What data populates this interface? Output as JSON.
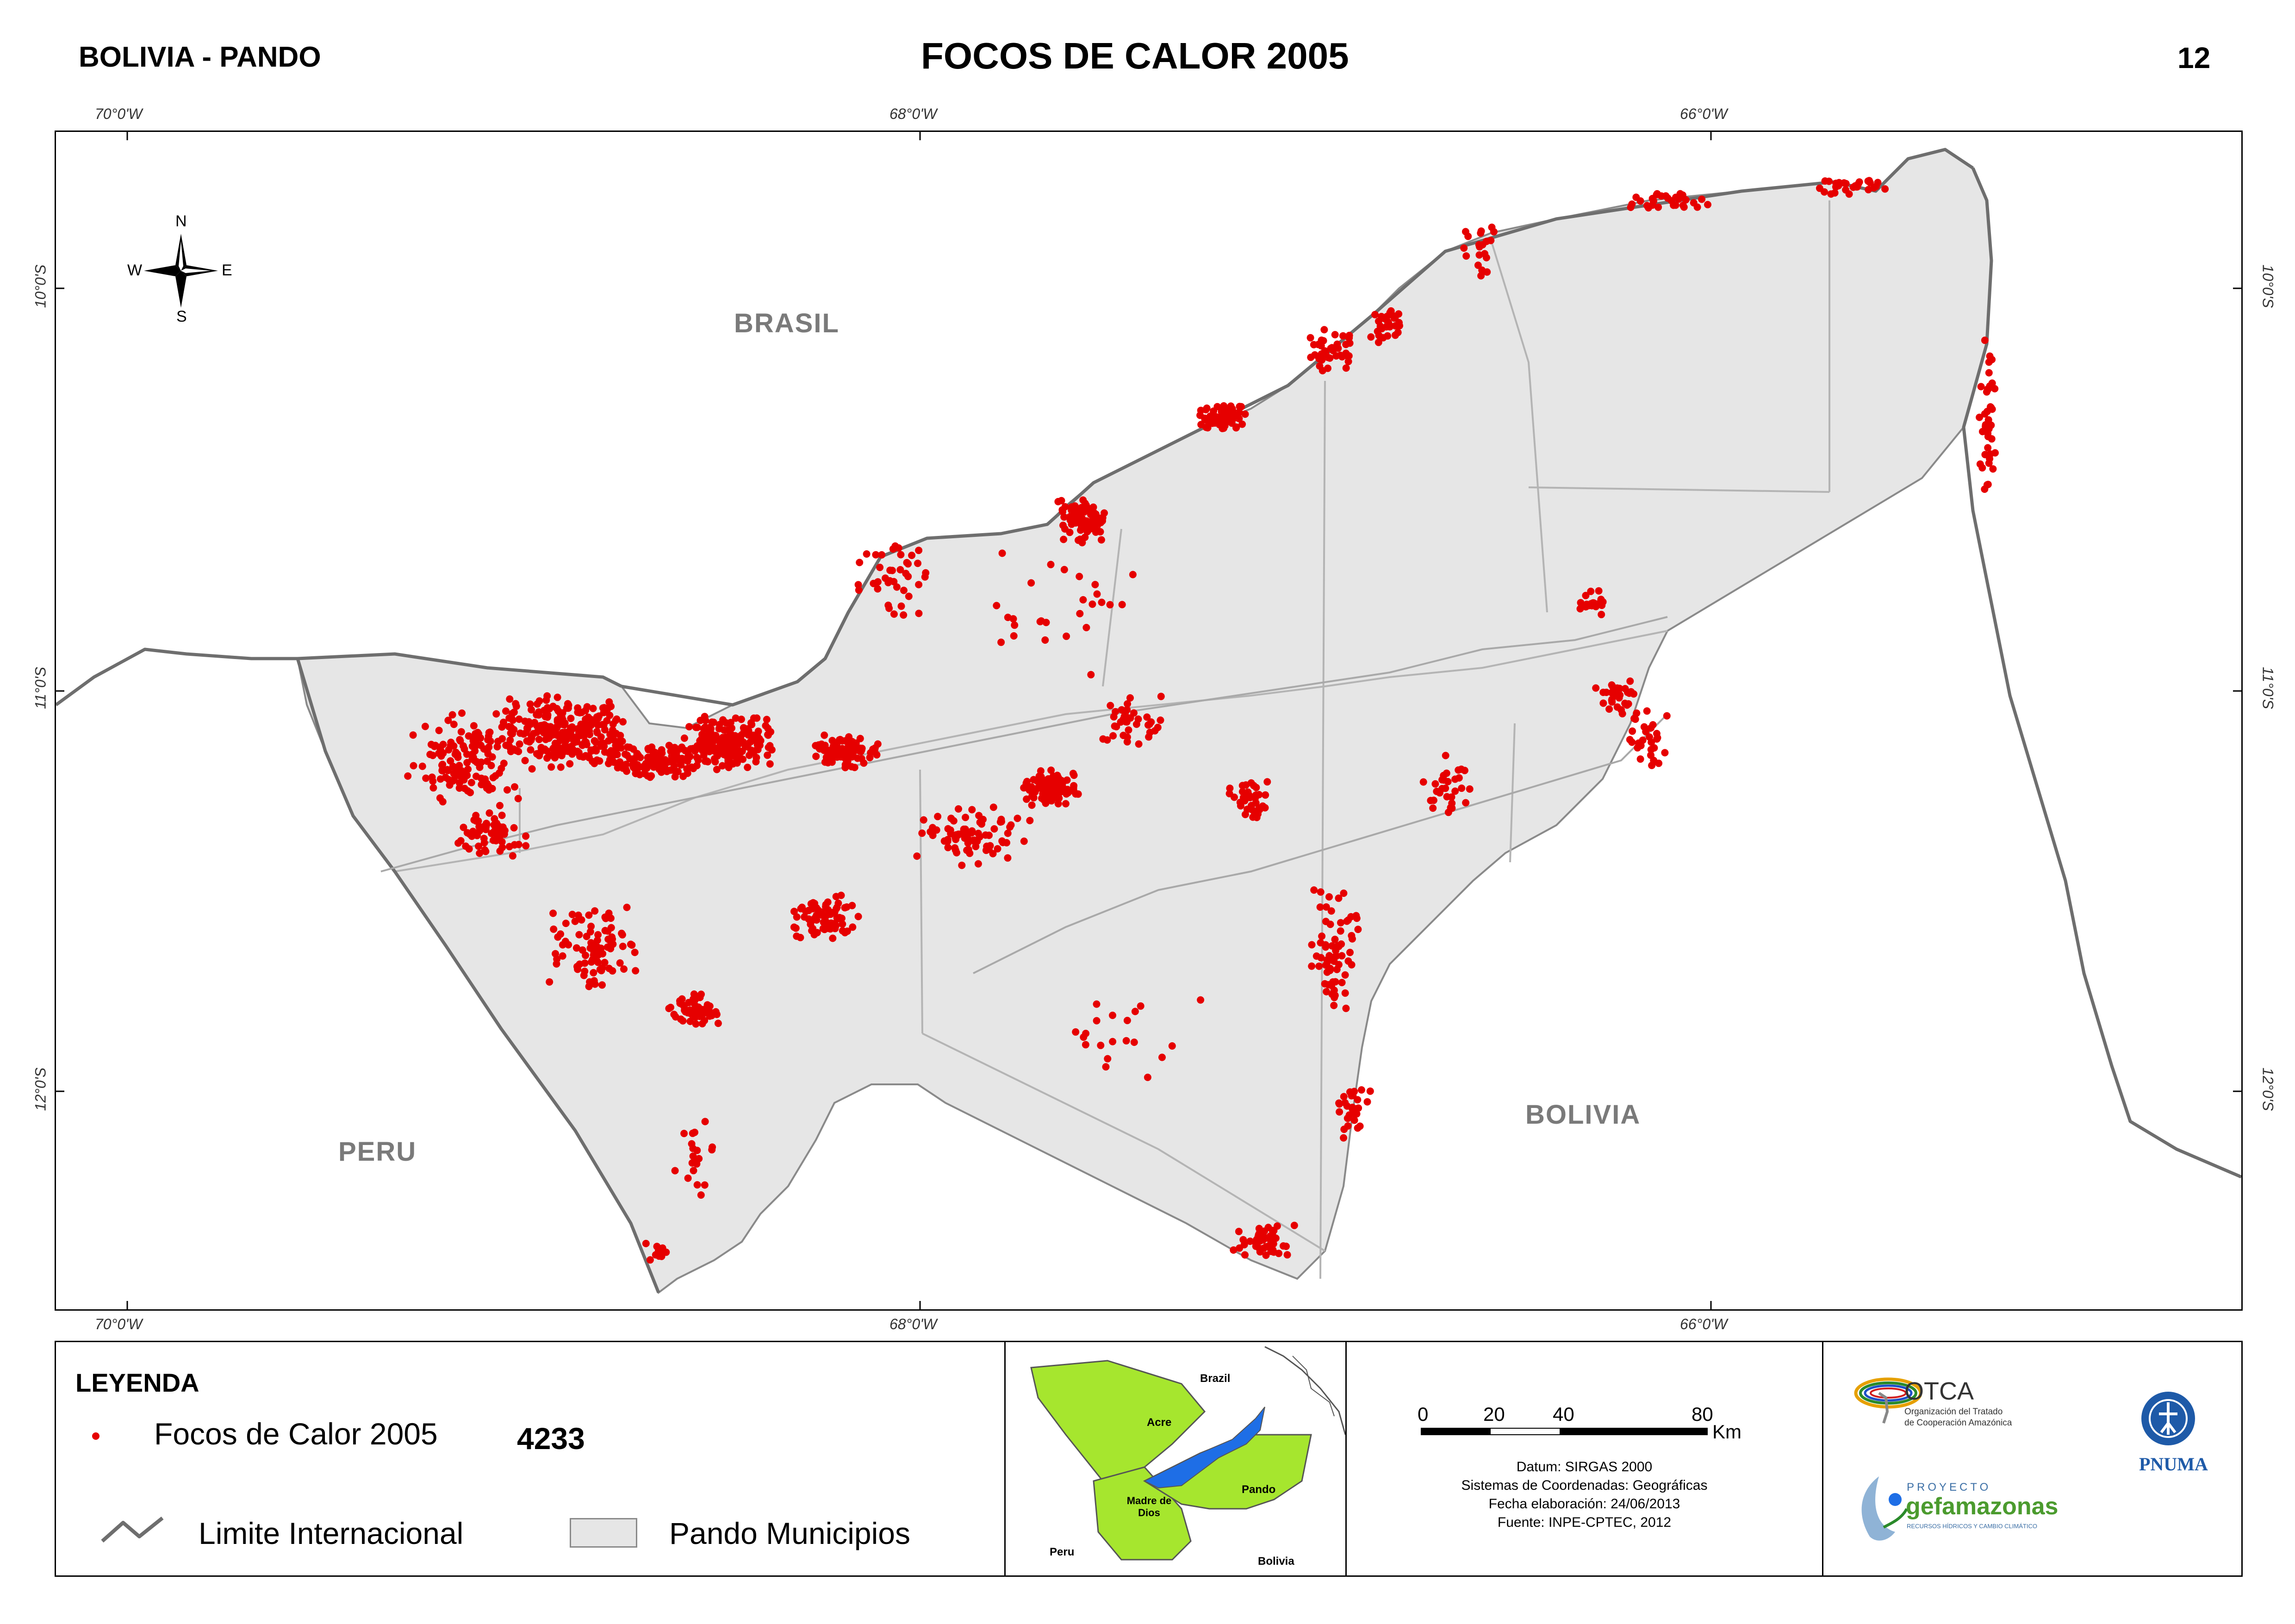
{
  "header": {
    "left": "BOLIVIA - PANDO",
    "title": "FOCOS DE CALOR 2005",
    "page_number": "12"
  },
  "coordinates": {
    "lon_70": "70°0'W",
    "lon_68": "68°0'W",
    "lon_66": "66°0'W",
    "lat_10": "10°0'S",
    "lat_11": "11°0'S",
    "lat_12": "12°0'S"
  },
  "map": {
    "label_brasil": "BRASIL",
    "label_bolivia": "BOLIVIA",
    "label_peru": "PERU",
    "compass": {
      "n": "N",
      "s": "S",
      "e": "E",
      "w": "W"
    },
    "colors": {
      "hotspot": "#e60000",
      "municipio_fill": "#e6e6e6",
      "international_border": "#6e6e6e",
      "municipal_border": "#b4b4b4"
    }
  },
  "legend": {
    "title": "LEYENDA",
    "hotspots_label": "Focos de Calor 2005",
    "hotspots_count": "4233",
    "border_label": "Limite Internacional",
    "municipios_label": "Pando Municipios"
  },
  "inset": {
    "brazil": "Brazil",
    "acre": "Acre",
    "pando": "Pando",
    "madre_de_dios": "Madre de Dios",
    "peru": "Peru",
    "bolivia": "Bolivia",
    "colors": {
      "region": "#a6e62e",
      "pando": "#1e6ee6",
      "outline": "#555555"
    }
  },
  "scale": {
    "ticks": [
      "0",
      "20",
      "40",
      "80"
    ],
    "unit": "Km"
  },
  "metadata": {
    "datum": "Datum: SIRGAS 2000",
    "system": "Sistemas de Coordenadas: Geográficas",
    "date": "Fecha elaboración: 24/06/2013",
    "source": "Fuente: INPE-CPTEC, 2012"
  },
  "logos": {
    "otca_name": "OTCA",
    "otca_line1": "Organización del Tratado",
    "otca_line2": "de Cooperación Amazónica",
    "gef_proyecto": "PROYECTO",
    "gef_name": "gefamazonas",
    "gef_sub": "RECURSOS HÍDRICOS Y CAMBIO CLIMÁTICO",
    "pnuma": "PNUMA"
  }
}
